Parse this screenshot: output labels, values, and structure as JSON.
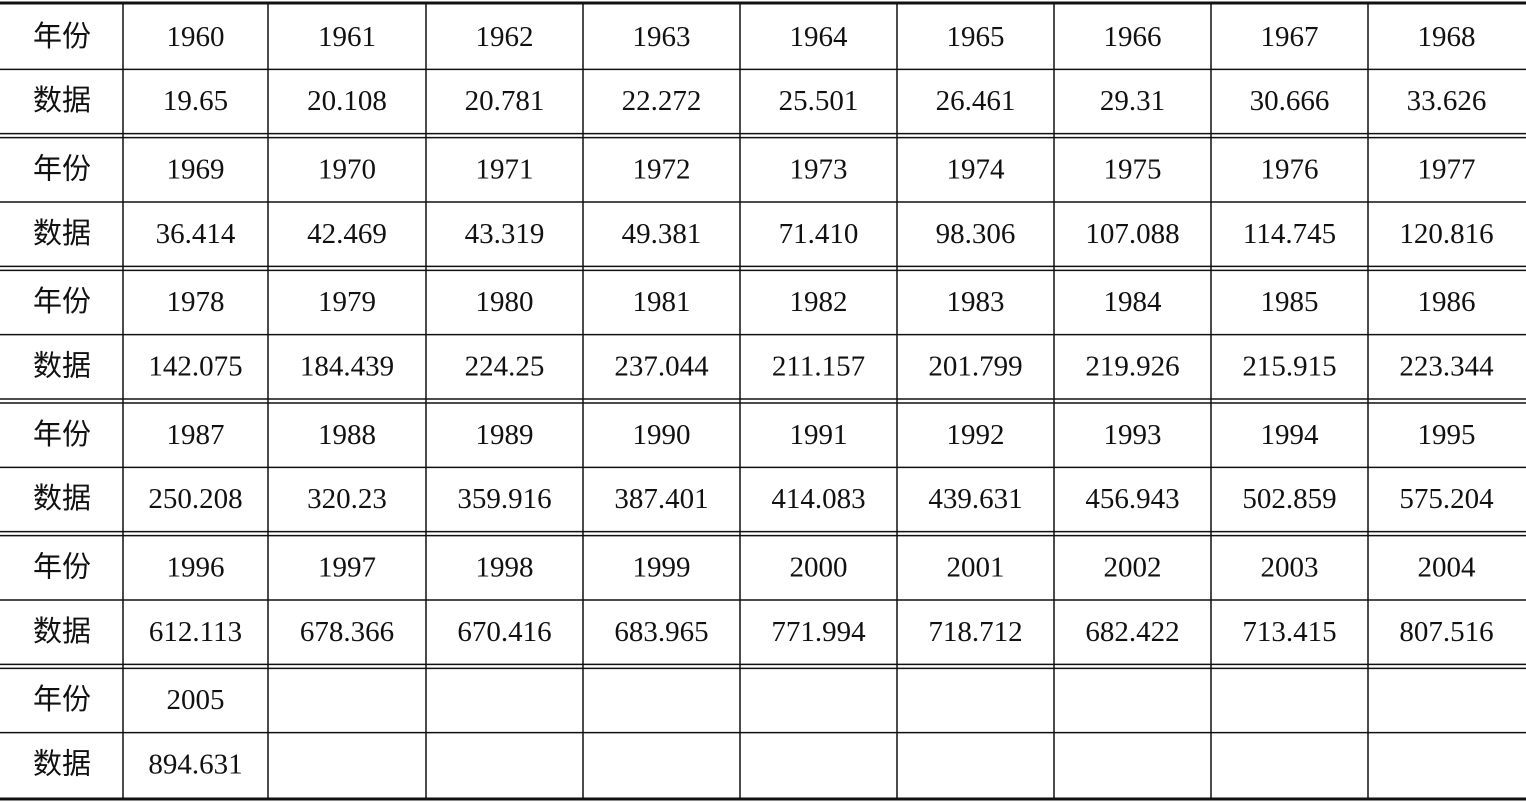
{
  "table": {
    "blocks": [
      {
        "header": "年份",
        "years": [
          "1960",
          "1961",
          "1962",
          "1963",
          "1964",
          "1965",
          "1966",
          "1967",
          "1968"
        ],
        "label": "数据",
        "values": [
          "19.65",
          "20.108",
          "20.781",
          "22.272",
          "25.501",
          "26.461",
          "29.31",
          "30.666",
          "33.626"
        ]
      },
      {
        "header": "年份",
        "years": [
          "1969",
          "1970",
          "1971",
          "1972",
          "1973",
          "1974",
          "1975",
          "1976",
          "1977"
        ],
        "label": "数据",
        "values": [
          "36.414",
          "42.469",
          "43.319",
          "49.381",
          "71.410",
          "98.306",
          "107.088",
          "114.745",
          "120.816"
        ]
      },
      {
        "header": "年份",
        "years": [
          "1978",
          "1979",
          "1980",
          "1981",
          "1982",
          "1983",
          "1984",
          "1985",
          "1986"
        ],
        "label": "数据",
        "values": [
          "142.075",
          "184.439",
          "224.25",
          "237.044",
          "211.157",
          "201.799",
          "219.926",
          "215.915",
          "223.344"
        ]
      },
      {
        "header": "年份",
        "years": [
          "1987",
          "1988",
          "1989",
          "1990",
          "1991",
          "1992",
          "1993",
          "1994",
          "1995"
        ],
        "label": "数据",
        "values": [
          "250.208",
          "320.23",
          "359.916",
          "387.401",
          "414.083",
          "439.631",
          "456.943",
          "502.859",
          "575.204"
        ]
      },
      {
        "header": "年份",
        "years": [
          "1996",
          "1997",
          "1998",
          "1999",
          "2000",
          "2001",
          "2002",
          "2003",
          "2004"
        ],
        "label": "数据",
        "values": [
          "612.113",
          "678.366",
          "670.416",
          "683.965",
          "771.994",
          "718.712",
          "682.422",
          "713.415",
          "807.516"
        ]
      },
      {
        "header": "年份",
        "years": [
          "2005"
        ],
        "label": "数据",
        "values": [
          "894.631"
        ]
      }
    ]
  }
}
